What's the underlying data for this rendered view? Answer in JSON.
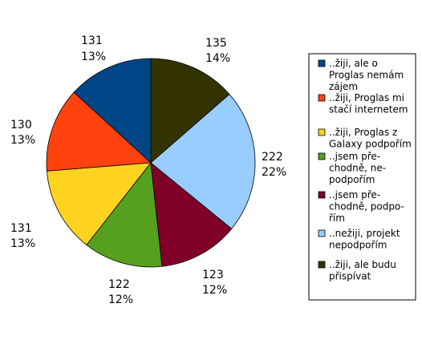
{
  "chart_data": {
    "type": "pie",
    "start_angle_deg": 0,
    "direction": "clockwise",
    "legend_position": "right",
    "slices": [
      {
        "value": 135,
        "label_value": "135",
        "label_pct": "14%",
        "color": "#333300",
        "legend": [
          "..žiji, ale budu",
          "přispívat"
        ]
      },
      {
        "value": 222,
        "label_value": "222",
        "label_pct": "22%",
        "color": "#99CCFF",
        "legend": [
          "..nežiji, projekt",
          "nepodpořím"
        ]
      },
      {
        "value": 123,
        "label_value": "123",
        "label_pct": "12%",
        "color": "#800028",
        "legend": [
          "..jsem pře-",
          "chodně, podpo-",
          "řím"
        ]
      },
      {
        "value": 122,
        "label_value": "122",
        "label_pct": "12%",
        "color": "#55A01E",
        "legend": [
          "..jsem pře-",
          "chodně, ne-",
          "podpořím"
        ]
      },
      {
        "value": 131,
        "label_value": "131",
        "label_pct": "13%",
        "color": "#FFD320",
        "legend": [
          "..žiji, Proglas z",
          "Galaxy podpořím"
        ]
      },
      {
        "value": 130,
        "label_value": "130",
        "label_pct": "13%",
        "color": "#FF420E",
        "legend": [
          "..žiji, Proglas mi",
          "stačí internetem"
        ]
      },
      {
        "value": 131,
        "label_value": "131",
        "label_pct": "13%",
        "color": "#004586",
        "legend": [
          "..žiji, ale o",
          "Proglas nemám",
          "zájem"
        ]
      }
    ],
    "legend_order": [
      6,
      5,
      4,
      3,
      2,
      1,
      0
    ]
  }
}
